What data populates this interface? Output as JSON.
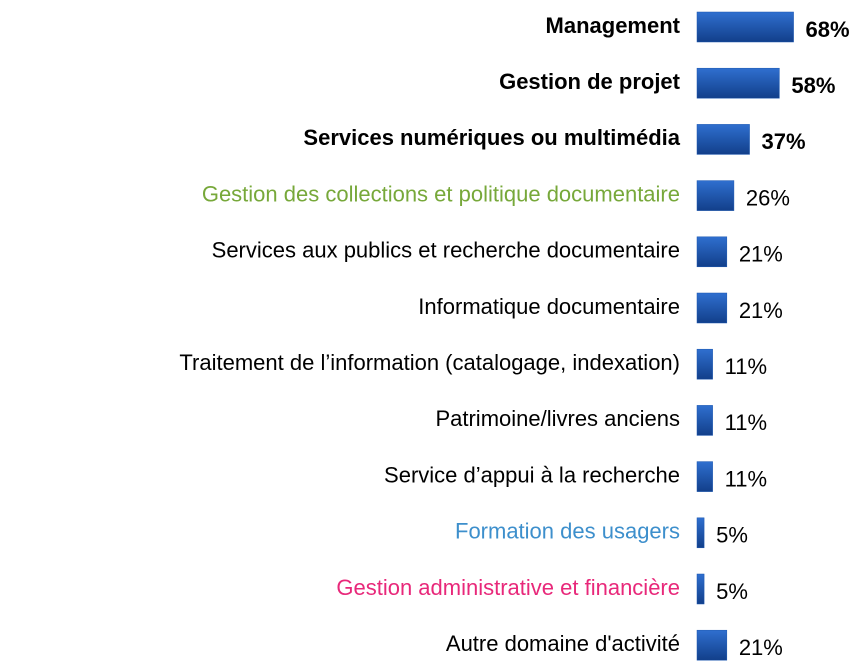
{
  "chart_data": {
    "type": "bar",
    "orientation": "horizontal",
    "categories": [
      "Management",
      "Gestion de projet",
      "Services numériques ou multimédia",
      "Gestion des collections et politique documentaire",
      "Services aux publics et recherche documentaire",
      "Informatique documentaire",
      "Traitement de l’information (catalogage, indexation)",
      "Patrimoine/livres anciens",
      "Service d’appui à la recherche",
      "Formation des usagers",
      "Gestion administrative et financière",
      "Autre domaine d'activité"
    ],
    "values": [
      68,
      58,
      37,
      26,
      21,
      21,
      11,
      11,
      11,
      5,
      5,
      21
    ],
    "value_labels": [
      "68%",
      "58%",
      "37%",
      "26%",
      "21%",
      "21%",
      "11%",
      "11%",
      "11%",
      "5%",
      "5%",
      "21%"
    ],
    "color": "#1a56b0",
    "label_colors": [
      "#000000",
      "#000000",
      "#000000",
      "#77a83a",
      "#000000",
      "#000000",
      "#000000",
      "#000000",
      "#000000",
      "#3d8fcc",
      "#e8287a",
      "#000000"
    ],
    "label_bold": [
      true,
      true,
      true,
      false,
      false,
      false,
      false,
      false,
      false,
      false,
      false,
      false
    ]
  }
}
